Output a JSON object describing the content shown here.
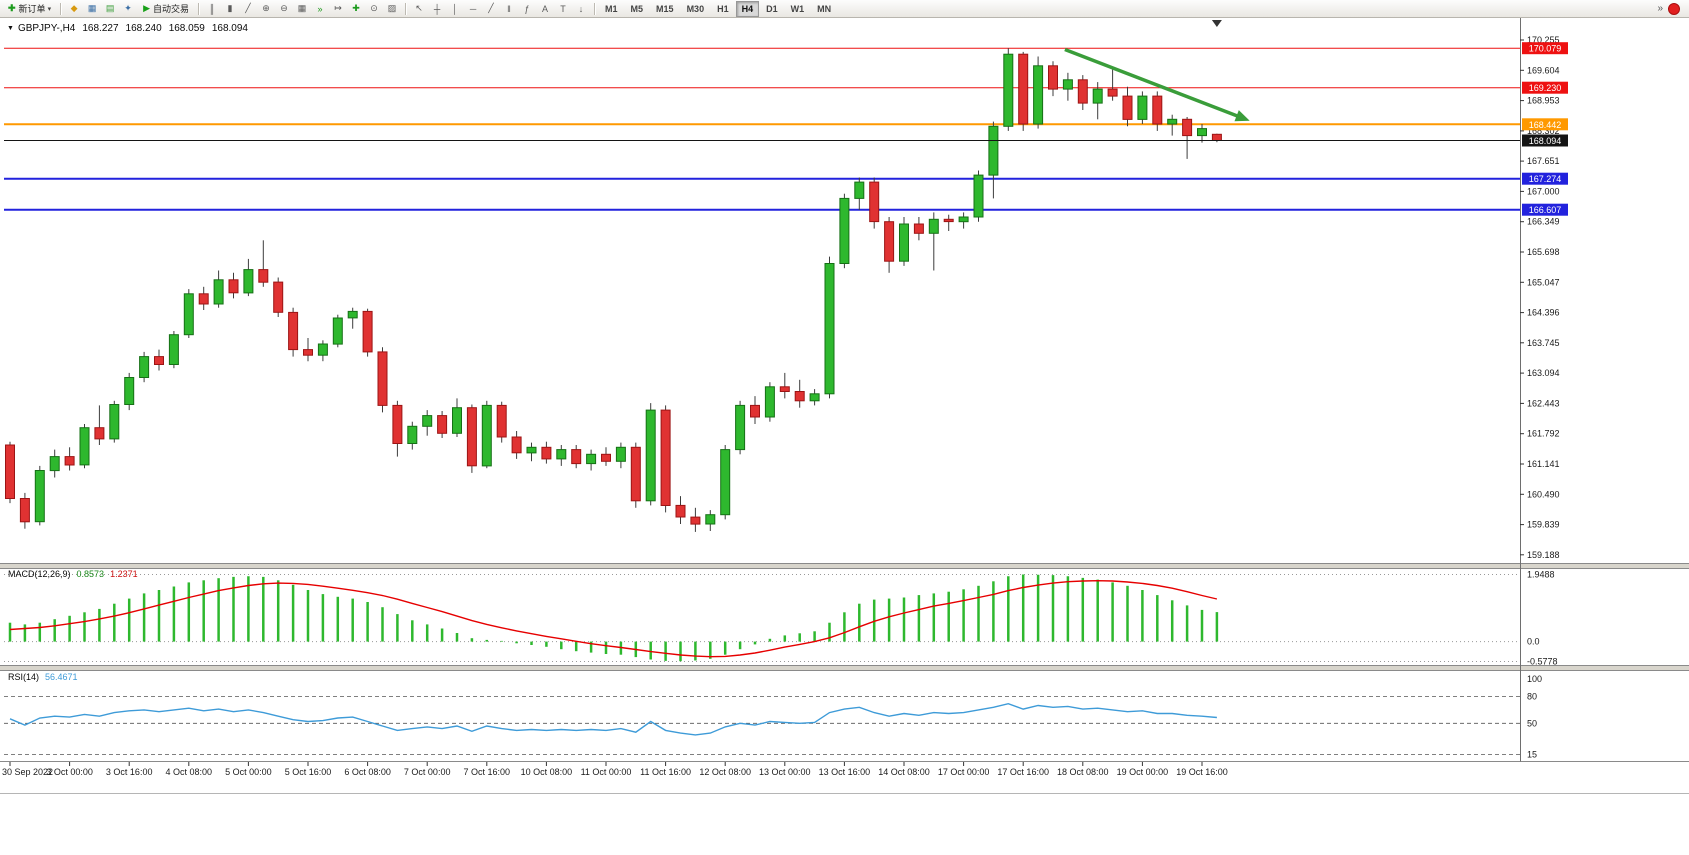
{
  "toolbar": {
    "new_order": {
      "label": "新订单",
      "glyph": "✚"
    },
    "quick_icons": [
      {
        "name": "metaeditor-icon",
        "glyph": "◆",
        "color": "#d89a10"
      },
      {
        "name": "market-watch-icon",
        "glyph": "▦",
        "color": "#3a6ea5"
      },
      {
        "name": "data-window-icon",
        "glyph": "▤",
        "color": "#3a9d3a"
      },
      {
        "name": "navigator-icon",
        "glyph": "✦",
        "color": "#3a6ea5"
      }
    ],
    "autotrading": {
      "label": "自动交易",
      "glyph": "▶"
    },
    "chart_icons": [
      {
        "name": "bar-chart-icon",
        "glyph": "║"
      },
      {
        "name": "candlestick-chart-icon",
        "glyph": "▮"
      },
      {
        "name": "line-chart-icon",
        "glyph": "╱"
      },
      {
        "name": "zoom-in-icon",
        "glyph": "⊕"
      },
      {
        "name": "zoom-out-icon",
        "glyph": "⊖"
      },
      {
        "name": "tile-windows-icon",
        "glyph": "▦"
      },
      {
        "name": "auto-scroll-icon",
        "glyph": "»",
        "color": "#1d9b1d"
      },
      {
        "name": "chart-shift-icon",
        "glyph": "↦"
      },
      {
        "name": "indicators-icon",
        "glyph": "✚",
        "color": "#1d9b1d"
      },
      {
        "name": "period-dropdown-icon",
        "glyph": "⊙"
      },
      {
        "name": "template-icon",
        "glyph": "▨"
      }
    ],
    "line_study_icons": [
      {
        "name": "cursor-icon",
        "glyph": "↖"
      },
      {
        "name": "crosshair-icon",
        "glyph": "┼"
      },
      {
        "name": "vertical-line-icon",
        "glyph": "│"
      },
      {
        "name": "horizontal-line-icon",
        "glyph": "─"
      },
      {
        "name": "trendline-icon",
        "glyph": "╱"
      },
      {
        "name": "channel-icon",
        "glyph": "‖"
      },
      {
        "name": "fibonacci-icon",
        "glyph": "ƒ"
      },
      {
        "name": "text-icon",
        "glyph": "A"
      },
      {
        "name": "label-icon",
        "glyph": "T"
      },
      {
        "name": "arrows-icon",
        "glyph": "↓"
      }
    ],
    "timeframes": [
      "M1",
      "M5",
      "M15",
      "M30",
      "H1",
      "H4",
      "D1",
      "W1",
      "MN"
    ],
    "active_timeframe": "H4"
  },
  "chart": {
    "title": {
      "symbol_period": "GBPJPY-,H4",
      "open": "168.227",
      "high": "168.240",
      "low": "168.059",
      "close": "168.094"
    }
  },
  "chart_data": {
    "type": "candlestick",
    "symbol": "GBPJPY-",
    "period": "H4",
    "price_axis": {
      "ticks": [
        "170.255",
        "169.604",
        "168.953",
        "168.302",
        "167.651",
        "167.000",
        "166.349",
        "165.698",
        "165.047",
        "164.396",
        "163.745",
        "163.094",
        "162.443",
        "161.792",
        "161.141",
        "160.490",
        "159.839",
        "159.188"
      ]
    },
    "hlines": [
      {
        "price": 170.079,
        "label": "170.079",
        "color": "#ee1111",
        "width": 1
      },
      {
        "price": 169.23,
        "label": "169.230",
        "color": "#ee1111",
        "width": 1
      },
      {
        "price": 168.442,
        "label": "168.442",
        "color": "#ff9900",
        "width": 2
      },
      {
        "price": 167.274,
        "label": "167.274",
        "color": "#2222dd",
        "width": 2
      },
      {
        "price": 166.607,
        "label": "166.607",
        "color": "#2222dd",
        "width": 2
      }
    ],
    "current_price": {
      "value": 168.094,
      "label": "168.094",
      "color": "#141414"
    },
    "trend_arrow": {
      "from_index": 70.8,
      "from_price": 170.05,
      "to_index": 83.2,
      "to_price": 168.52,
      "color": "#3a9d3a"
    },
    "shift_marker_index": 81,
    "candles": [
      [
        161.55,
        161.62,
        160.3,
        160.4
      ],
      [
        160.4,
        160.52,
        159.75,
        159.9
      ],
      [
        159.9,
        161.1,
        159.82,
        161.0
      ],
      [
        161.0,
        161.45,
        160.85,
        161.3
      ],
      [
        161.3,
        161.5,
        161.0,
        161.12
      ],
      [
        161.12,
        162.0,
        161.05,
        161.92
      ],
      [
        161.92,
        162.4,
        161.55,
        161.68
      ],
      [
        161.68,
        162.5,
        161.6,
        162.42
      ],
      [
        162.42,
        163.1,
        162.3,
        163.0
      ],
      [
        163.0,
        163.55,
        162.9,
        163.45
      ],
      [
        163.45,
        163.6,
        163.15,
        163.28
      ],
      [
        163.28,
        164.0,
        163.2,
        163.92
      ],
      [
        163.92,
        164.9,
        163.85,
        164.8
      ],
      [
        164.8,
        164.95,
        164.45,
        164.58
      ],
      [
        164.58,
        165.3,
        164.5,
        165.1
      ],
      [
        165.1,
        165.25,
        164.7,
        164.82
      ],
      [
        164.82,
        165.55,
        164.75,
        165.32
      ],
      [
        165.32,
        165.95,
        164.95,
        165.05
      ],
      [
        165.05,
        165.15,
        164.3,
        164.4
      ],
      [
        164.4,
        164.5,
        163.45,
        163.6
      ],
      [
        163.6,
        163.85,
        163.35,
        163.48
      ],
      [
        163.48,
        163.8,
        163.35,
        163.72
      ],
      [
        163.72,
        164.35,
        163.65,
        164.28
      ],
      [
        164.28,
        164.5,
        164.05,
        164.42
      ],
      [
        164.42,
        164.48,
        163.45,
        163.55
      ],
      [
        163.55,
        163.65,
        162.25,
        162.4
      ],
      [
        162.4,
        162.5,
        161.3,
        161.58
      ],
      [
        161.58,
        162.05,
        161.45,
        161.95
      ],
      [
        161.95,
        162.3,
        161.75,
        162.18
      ],
      [
        162.18,
        162.28,
        161.7,
        161.8
      ],
      [
        161.8,
        162.55,
        161.72,
        162.35
      ],
      [
        162.35,
        162.42,
        160.95,
        161.1
      ],
      [
        161.1,
        162.5,
        161.05,
        162.4
      ],
      [
        162.4,
        162.48,
        161.6,
        161.72
      ],
      [
        161.72,
        161.85,
        161.25,
        161.38
      ],
      [
        161.38,
        161.6,
        161.2,
        161.5
      ],
      [
        161.5,
        161.62,
        161.15,
        161.25
      ],
      [
        161.25,
        161.55,
        161.1,
        161.45
      ],
      [
        161.45,
        161.55,
        161.05,
        161.15
      ],
      [
        161.15,
        161.45,
        161.0,
        161.35
      ],
      [
        161.35,
        161.5,
        161.1,
        161.2
      ],
      [
        161.2,
        161.6,
        161.05,
        161.5
      ],
      [
        161.5,
        161.6,
        160.2,
        160.35
      ],
      [
        160.35,
        162.45,
        160.25,
        162.3
      ],
      [
        162.3,
        162.4,
        160.1,
        160.25
      ],
      [
        160.25,
        160.45,
        159.85,
        160.0
      ],
      [
        160.0,
        160.2,
        159.68,
        159.85
      ],
      [
        159.85,
        160.15,
        159.7,
        160.05
      ],
      [
        160.05,
        161.55,
        159.95,
        161.45
      ],
      [
        161.45,
        162.5,
        161.35,
        162.4
      ],
      [
        162.4,
        162.6,
        162.0,
        162.15
      ],
      [
        162.15,
        162.9,
        162.05,
        162.8
      ],
      [
        162.8,
        163.1,
        162.55,
        162.7
      ],
      [
        162.7,
        162.95,
        162.35,
        162.5
      ],
      [
        162.5,
        162.75,
        162.4,
        162.65
      ],
      [
        162.65,
        165.6,
        162.55,
        165.45
      ],
      [
        165.45,
        166.95,
        165.35,
        166.85
      ],
      [
        166.85,
        167.3,
        166.6,
        167.2
      ],
      [
        167.2,
        167.3,
        166.2,
        166.35
      ],
      [
        166.35,
        166.45,
        165.25,
        165.5
      ],
      [
        165.5,
        166.45,
        165.4,
        166.3
      ],
      [
        166.3,
        166.45,
        165.95,
        166.1
      ],
      [
        166.1,
        166.55,
        165.3,
        166.4
      ],
      [
        166.4,
        166.5,
        166.15,
        166.35
      ],
      [
        166.35,
        166.55,
        166.2,
        166.45
      ],
      [
        166.45,
        167.45,
        166.35,
        167.35
      ],
      [
        167.35,
        168.5,
        166.85,
        168.4
      ],
      [
        168.4,
        170.079,
        168.3,
        169.95
      ],
      [
        169.95,
        170.0,
        168.3,
        168.45
      ],
      [
        168.45,
        169.9,
        168.35,
        169.7
      ],
      [
        169.7,
        169.8,
        169.05,
        169.2
      ],
      [
        169.2,
        169.55,
        168.95,
        169.4
      ],
      [
        169.4,
        169.5,
        168.75,
        168.9
      ],
      [
        168.9,
        169.35,
        168.55,
        169.2
      ],
      [
        169.2,
        169.65,
        168.95,
        169.05
      ],
      [
        169.05,
        169.25,
        168.4,
        168.55
      ],
      [
        168.55,
        169.15,
        168.45,
        169.05
      ],
      [
        169.05,
        169.15,
        168.3,
        168.45
      ],
      [
        168.45,
        168.65,
        168.2,
        168.55
      ],
      [
        168.55,
        168.6,
        167.7,
        168.2
      ],
      [
        168.2,
        168.45,
        168.05,
        168.35
      ],
      [
        168.227,
        168.24,
        168.059,
        168.094
      ]
    ],
    "time_axis": {
      "step": 4,
      "labels": [
        "30 Sep 2022",
        "3 Oct 00:00",
        "3 Oct 16:00",
        "4 Oct 08:00",
        "5 Oct 00:00",
        "5 Oct 16:00",
        "6 Oct 08:00",
        "7 Oct 00:00",
        "7 Oct 16:00",
        "10 Oct 08:00",
        "11 Oct 00:00",
        "11 Oct 16:00",
        "12 Oct 08:00",
        "13 Oct 00:00",
        "13 Oct 16:00",
        "14 Oct 08:00",
        "17 Oct 00:00",
        "17 Oct 16:00",
        "18 Oct 08:00",
        "19 Oct 00:00",
        "19 Oct 16:00"
      ]
    },
    "macd": {
      "name": "MACD(12,26,9)",
      "value_main": "0.8573",
      "value_signal": "1.2371",
      "axis_labels": [
        "1.9488",
        "0.0",
        "-0.5778"
      ],
      "axis_values": [
        1.9488,
        0.0,
        -0.5778
      ],
      "histogram": [
        0.55,
        0.5,
        0.55,
        0.65,
        0.75,
        0.85,
        0.95,
        1.1,
        1.25,
        1.4,
        1.5,
        1.6,
        1.72,
        1.78,
        1.84,
        1.88,
        1.9,
        1.88,
        1.78,
        1.65,
        1.5,
        1.38,
        1.3,
        1.25,
        1.15,
        1.0,
        0.8,
        0.62,
        0.5,
        0.38,
        0.25,
        0.1,
        0.05,
        0.02,
        -0.05,
        -0.1,
        -0.15,
        -0.22,
        -0.28,
        -0.32,
        -0.36,
        -0.38,
        -0.45,
        -0.52,
        -0.56,
        -0.57,
        -0.55,
        -0.5,
        -0.38,
        -0.22,
        -0.08,
        0.08,
        0.18,
        0.24,
        0.3,
        0.55,
        0.85,
        1.1,
        1.22,
        1.25,
        1.28,
        1.35,
        1.4,
        1.45,
        1.52,
        1.62,
        1.75,
        1.9,
        1.9488,
        1.94,
        1.93,
        1.9,
        1.85,
        1.8,
        1.72,
        1.62,
        1.5,
        1.35,
        1.2,
        1.05,
        0.92,
        0.8573
      ],
      "signal": [
        0.35,
        0.38,
        0.41,
        0.46,
        0.52,
        0.58,
        0.66,
        0.74,
        0.84,
        0.95,
        1.06,
        1.17,
        1.28,
        1.38,
        1.48,
        1.56,
        1.63,
        1.68,
        1.7,
        1.69,
        1.66,
        1.61,
        1.55,
        1.49,
        1.42,
        1.34,
        1.23,
        1.11,
        0.99,
        0.87,
        0.74,
        0.61,
        0.5,
        0.4,
        0.31,
        0.23,
        0.15,
        0.08,
        0.01,
        -0.06,
        -0.12,
        -0.17,
        -0.23,
        -0.29,
        -0.34,
        -0.39,
        -0.42,
        -0.44,
        -0.43,
        -0.39,
        -0.33,
        -0.25,
        -0.16,
        -0.08,
        0.0,
        0.11,
        0.26,
        0.43,
        0.59,
        0.72,
        0.83,
        0.93,
        1.03,
        1.11,
        1.19,
        1.28,
        1.37,
        1.48,
        1.57,
        1.64,
        1.7,
        1.74,
        1.76,
        1.77,
        1.76,
        1.73,
        1.69,
        1.63,
        1.55,
        1.45,
        1.34,
        1.2371
      ]
    },
    "rsi": {
      "name": "RSI(14)",
      "value": "56.4671",
      "axis_labels": [
        "100",
        "80",
        "50",
        "15"
      ],
      "axis_values": [
        100,
        80,
        50,
        15
      ],
      "levels": [
        80,
        50,
        15
      ],
      "values": [
        55,
        48,
        56,
        58,
        57,
        60,
        58,
        62,
        64,
        65,
        63,
        65,
        67,
        64,
        66,
        63,
        65,
        62,
        58,
        54,
        52,
        53,
        56,
        57,
        52,
        47,
        42,
        44,
        46,
        44,
        47,
        41,
        47,
        44,
        42,
        43,
        42,
        43,
        42,
        43,
        42,
        44,
        40,
        52,
        42,
        39,
        37,
        39,
        46,
        50,
        48,
        52,
        51,
        50,
        51,
        62,
        66,
        68,
        62,
        58,
        61,
        59,
        62,
        61,
        62,
        65,
        68,
        72,
        66,
        70,
        68,
        69,
        66,
        67,
        65,
        63,
        64,
        61,
        61,
        59,
        58,
        56.4671
      ]
    },
    "style": {
      "up": "#2eb82e",
      "up_border": "#167016",
      "down": "#e03232",
      "down_border": "#9c1414",
      "wick": "#3c3c3c",
      "macd_hist": "#2eb82e",
      "macd_signal": "#e60000",
      "rsi_line": "#3e9bd8"
    }
  }
}
